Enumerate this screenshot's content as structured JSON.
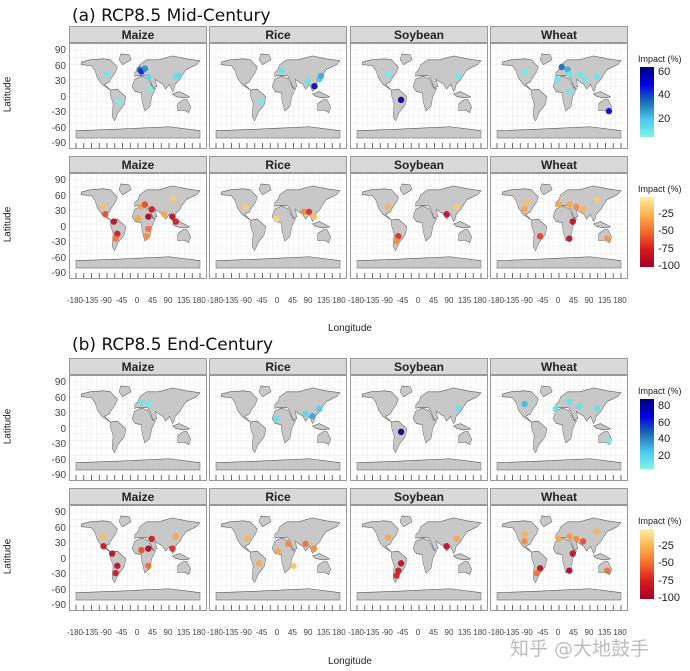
{
  "chart_data": {
    "type": "scatter",
    "subtype": "faceted world map point plot",
    "xlabel": "Longitude",
    "ylabel": "Latitude",
    "xlim": [
      -180,
      180
    ],
    "ylim": [
      -90,
      90
    ],
    "x_ticks": [
      "-180",
      "-135",
      "-90",
      "-45",
      "0",
      "45",
      "90",
      "135",
      "180"
    ],
    "y_ticks": [
      "90",
      "60",
      "30",
      "0",
      "-30",
      "-60",
      "-90"
    ],
    "grid": true,
    "watermark": "知乎 @大地鼓手",
    "colors": {
      "land": "#c8c8c8",
      "pos": [
        "#7ff7e4",
        "#4cc7f0",
        "#1a6fb0",
        "#0000e6",
        "#00007a"
      ],
      "neg": [
        "#ffef9e",
        "#fdb24f",
        "#f26b2c",
        "#d7191c",
        "#a50026"
      ]
    },
    "sections": [
      {
        "title": "(a) RCP8.5 Mid-Century",
        "rows": [
          {
            "sign": "positive",
            "legend": {
              "title": "Impact (%)",
              "ticks": [
                "60",
                "40",
                "20"
              ],
              "range": [
                5,
                65
              ]
            },
            "panels": [
              {
                "crop": "Maize",
                "points": [
                  [
                    -90,
                    40,
                    10
                  ],
                  [
                    5,
                    50,
                    35
                  ],
                  [
                    10,
                    46,
                    45
                  ],
                  [
                    20,
                    52,
                    30
                  ],
                  [
                    30,
                    35,
                    15
                  ],
                  [
                    110,
                    35,
                    12
                  ],
                  [
                    120,
                    38,
                    15
                  ],
                  [
                    -55,
                    -15,
                    8
                  ],
                  [
                    35,
                    10,
                    8
                  ]
                ]
              },
              {
                "crop": "Rice",
                "points": [
                  [
                    10,
                    48,
                    12
                  ],
                  [
                    85,
                    25,
                    12
                  ],
                  [
                    106,
                    16,
                    55
                  ],
                  [
                    120,
                    30,
                    20
                  ],
                  [
                    125,
                    37,
                    25
                  ],
                  [
                    -50,
                    -15,
                    8
                  ]
                ]
              },
              {
                "crop": "Soybean",
                "points": [
                  [
                    -88,
                    40,
                    8
                  ],
                  [
                    -52,
                    -12,
                    62
                  ],
                  [
                    115,
                    35,
                    10
                  ]
                ]
              },
              {
                "crop": "Wheat",
                "points": [
                  [
                    -100,
                    45,
                    10
                  ],
                  [
                    8,
                    55,
                    35
                  ],
                  [
                    25,
                    50,
                    25
                  ],
                  [
                    30,
                    40,
                    10
                  ],
                  [
                    60,
                    40,
                    10
                  ],
                  [
                    75,
                    30,
                    10
                  ],
                  [
                    110,
                    35,
                    12
                  ],
                  [
                    145,
                    -35,
                    50
                  ],
                  [
                    30,
                    5,
                    10
                  ],
                  [
                    -5,
                    30,
                    10
                  ]
                ]
              }
            ]
          },
          {
            "sign": "negative",
            "legend": {
              "title": "Impact (%)",
              "ticks": [
                "-25",
                "-50",
                "-75",
                "-100"
              ],
              "range": [
                -100,
                0
              ]
            },
            "panels": [
              {
                "crop": "Maize",
                "points": [
                  [
                    -100,
                    35,
                    -20
                  ],
                  [
                    -95,
                    20,
                    -60
                  ],
                  [
                    -70,
                    5,
                    -90
                  ],
                  [
                    -60,
                    -20,
                    -80
                  ],
                  [
                    -65,
                    -30,
                    -50
                  ],
                  [
                    10,
                    35,
                    -30
                  ],
                  [
                    0,
                    12,
                    -30
                  ],
                  [
                    20,
                    40,
                    -60
                  ],
                  [
                    30,
                    15,
                    -100
                  ],
                  [
                    40,
                    30,
                    -80
                  ],
                  [
                    75,
                    20,
                    -30
                  ],
                  [
                    100,
                    15,
                    -90
                  ],
                  [
                    110,
                    5,
                    -80
                  ],
                  [
                    30,
                    -10,
                    -50
                  ],
                  [
                    25,
                    -25,
                    -40
                  ],
                  [
                    100,
                    50,
                    -15
                  ]
                ]
              },
              {
                "crop": "Rice",
                "points": [
                  [
                    -95,
                    35,
                    -15
                  ],
                  [
                    75,
                    25,
                    -40
                  ],
                  [
                    90,
                    25,
                    -70
                  ],
                  [
                    105,
                    15,
                    -20
                  ],
                  [
                    -5,
                    10,
                    -10
                  ]
                ]
              },
              {
                "crop": "Soybean",
                "points": [
                  [
                    -90,
                    35,
                    -25
                  ],
                  [
                    80,
                    20,
                    -90
                  ],
                  [
                    -60,
                    -25,
                    -70
                  ],
                  [
                    -65,
                    -35,
                    -40
                  ],
                  [
                    110,
                    35,
                    -15
                  ]
                ]
              },
              {
                "crop": "Wheat",
                "points": [
                  [
                    -95,
                    45,
                    -20
                  ],
                  [
                    -100,
                    30,
                    -30
                  ],
                  [
                    0,
                    40,
                    -30
                  ],
                  [
                    30,
                    40,
                    -30
                  ],
                  [
                    50,
                    35,
                    -40
                  ],
                  [
                    70,
                    30,
                    -25
                  ],
                  [
                    40,
                    5,
                    -90
                  ],
                  [
                    30,
                    -30,
                    -90
                  ],
                  [
                    -55,
                    -25,
                    -65
                  ],
                  [
                    140,
                    -30,
                    -35
                  ],
                  [
                    110,
                    50,
                    -15
                  ]
                ]
              }
            ]
          }
        ]
      },
      {
        "title": "(b) RCP8.5 End-Century",
        "rows": [
          {
            "sign": "positive",
            "legend": {
              "title": "Impact (%)",
              "ticks": [
                "80",
                "60",
                "40",
                "20"
              ],
              "range": [
                5,
                90
              ]
            },
            "panels": [
              {
                "crop": "Maize",
                "points": [
                  [
                    10,
                    48,
                    12
                  ],
                  [
                    30,
                    45,
                    10
                  ]
                ]
              },
              {
                "crop": "Rice",
                "points": [
                  [
                    -5,
                    15,
                    15
                  ],
                  [
                    80,
                    25,
                    20
                  ],
                  [
                    100,
                    20,
                    35
                  ],
                  [
                    120,
                    35,
                    25
                  ]
                ]
              },
              {
                "crop": "Soybean",
                "points": [
                  [
                    -52,
                    -12,
                    90
                  ],
                  [
                    115,
                    35,
                    15
                  ]
                ]
              },
              {
                "crop": "Wheat",
                "points": [
                  [
                    -100,
                    45,
                    30
                  ],
                  [
                    30,
                    50,
                    15
                  ],
                  [
                    60,
                    40,
                    15
                  ],
                  [
                    110,
                    35,
                    15
                  ],
                  [
                    145,
                    -30,
                    10
                  ],
                  [
                    -10,
                    35,
                    15
                  ]
                ]
              }
            ]
          },
          {
            "sign": "negative",
            "legend": {
              "title": "Impact (%)",
              "ticks": [
                "-25",
                "-50",
                "-75",
                "-100"
              ],
              "range": [
                -100,
                0
              ]
            },
            "panels": [
              {
                "crop": "Maize",
                "points": [
                  [
                    -100,
                    40,
                    -20
                  ],
                  [
                    -100,
                    20,
                    -80
                  ],
                  [
                    -75,
                    5,
                    -90
                  ],
                  [
                    -60,
                    -20,
                    -90
                  ],
                  [
                    -65,
                    -35,
                    -80
                  ],
                  [
                    10,
                    12,
                    -60
                  ],
                  [
                    30,
                    15,
                    -100
                  ],
                  [
                    40,
                    35,
                    -80
                  ],
                  [
                    100,
                    15,
                    -70
                  ],
                  [
                    30,
                    -20,
                    -50
                  ],
                  [
                    110,
                    40,
                    -30
                  ]
                ]
              },
              {
                "crop": "Rice",
                "points": [
                  [
                    -90,
                    35,
                    -25
                  ],
                  [
                    0,
                    10,
                    -30
                  ],
                  [
                    30,
                    25,
                    -40
                  ],
                  [
                    80,
                    25,
                    -50
                  ],
                  [
                    105,
                    15,
                    -40
                  ],
                  [
                    -55,
                    -15,
                    -30
                  ],
                  [
                    45,
                    -20,
                    -20
                  ]
                ]
              },
              {
                "crop": "Soybean",
                "points": [
                  [
                    -90,
                    38,
                    -30
                  ],
                  [
                    -52,
                    -15,
                    -90
                  ],
                  [
                    -60,
                    -30,
                    -80
                  ],
                  [
                    -65,
                    -40,
                    -75
                  ],
                  [
                    80,
                    20,
                    -90
                  ],
                  [
                    110,
                    35,
                    -30
                  ]
                ]
              },
              {
                "crop": "Wheat",
                "points": [
                  [
                    -100,
                    45,
                    -25
                  ],
                  [
                    -100,
                    30,
                    -40
                  ],
                  [
                    0,
                    35,
                    -30
                  ],
                  [
                    30,
                    40,
                    -35
                  ],
                  [
                    50,
                    35,
                    -40
                  ],
                  [
                    70,
                    30,
                    -60
                  ],
                  [
                    40,
                    5,
                    -90
                  ],
                  [
                    30,
                    -30,
                    -100
                  ],
                  [
                    -55,
                    -25,
                    -90
                  ],
                  [
                    -65,
                    -35,
                    -50
                  ],
                  [
                    140,
                    -30,
                    -50
                  ],
                  [
                    110,
                    50,
                    -25
                  ]
                ]
              }
            ]
          }
        ]
      }
    ]
  }
}
